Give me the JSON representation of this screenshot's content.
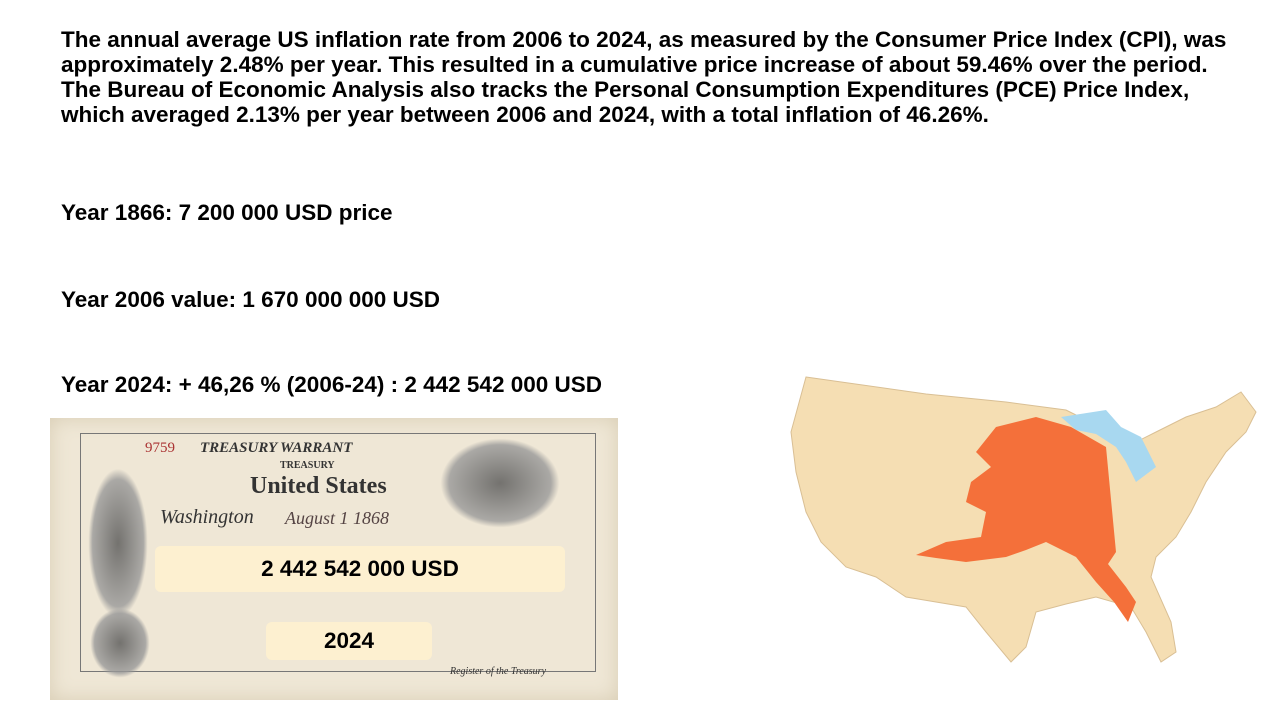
{
  "paragraph": "The annual average US inflation rate from 2006 to 2024, as measured by the Consumer Price Index (CPI), was approximately 2.48% per year. This resulted in a cumulative price increase of about 59.46% over the period. The Bureau of Economic Analysis also tracks the Personal Consumption Expenditures (PCE) Price Index, which averaged 2.13% per year between 2006 and 2024, with a total inflation of 46.26%.",
  "line_1866": "Year 1866: 7 200 000 USD price",
  "line_2006": "Year 2006 value: 1 670 000 000 USD",
  "line_2024": "Year 2024: + 46,26 % (2006-24) : 2 442 542 000 USD",
  "check": {
    "header": "TREASURY WARRANT",
    "treasury": "TREASURY",
    "country": "United States",
    "number": "9759",
    "city": "Washington",
    "date": "August 1 1868",
    "amount_label": "2 442 542 000 USD",
    "year_label": "2024",
    "footer": "Register of the Treasury"
  },
  "colors": {
    "map_land": "#f5deb3",
    "alaska": "#f4703a",
    "lakes": "#a8d8f0",
    "label_bg": "#fdf0d0"
  }
}
